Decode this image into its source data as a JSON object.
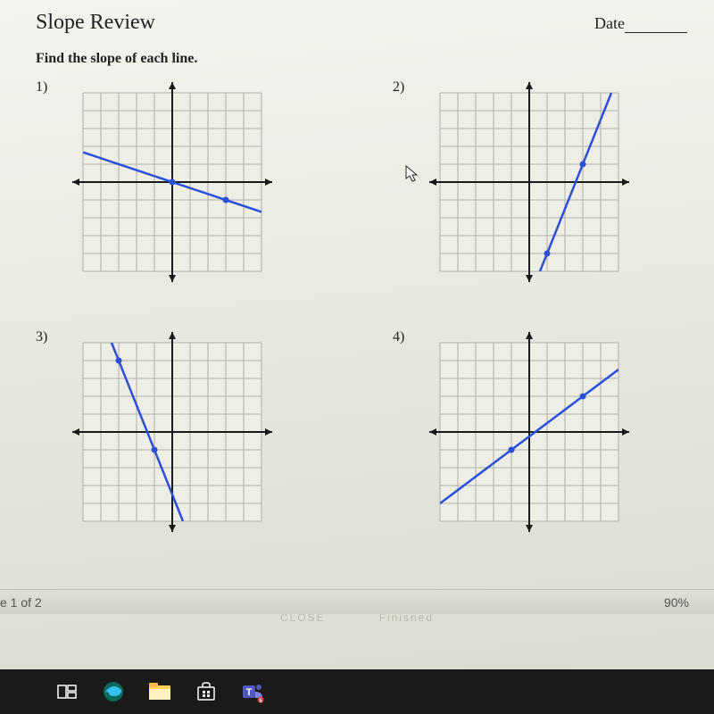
{
  "header": {
    "title": "Slope Review",
    "date_label": "Date"
  },
  "instruction": "Find the slope of each line.",
  "graph": {
    "grid_color": "#b0b0a8",
    "axis_color": "#1a1a1a",
    "line_color": "#2a4fd8",
    "point_color": "#2a4fd8",
    "bg_color": "#eeeee6",
    "size": 200,
    "cells": 10,
    "axis_width": 2,
    "grid_width": 1,
    "line_width": 2.5,
    "point_radius": 3.5,
    "arrow_size": 8
  },
  "problems": [
    {
      "num": "1)",
      "points": [
        [
          0,
          0
        ],
        [
          3,
          -1
        ]
      ],
      "line_extent": [
        [
          -5,
          1.67
        ],
        [
          5,
          -1.67
        ]
      ]
    },
    {
      "num": "2)",
      "points": [
        [
          1,
          -4
        ],
        [
          3,
          1
        ]
      ],
      "line_extent": [
        [
          0.6,
          -5
        ],
        [
          4.6,
          5
        ]
      ],
      "cursor": true
    },
    {
      "num": "3)",
      "points": [
        [
          -3,
          4
        ],
        [
          -1,
          -1
        ]
      ],
      "line_extent": [
        [
          -3.4,
          5
        ],
        [
          0.6,
          -5
        ]
      ]
    },
    {
      "num": "4)",
      "points": [
        [
          -1,
          -1
        ],
        [
          3,
          2
        ]
      ],
      "line_extent": [
        [
          -5,
          -4
        ],
        [
          5,
          3.5
        ]
      ]
    }
  ],
  "footer": {
    "page_info": "e 1 of 2",
    "close_hint": "CLOSE",
    "finished_hint": "Finisned",
    "zoom": "90%"
  },
  "taskbar": {
    "icons": [
      {
        "name": "task-view-icon",
        "color": "#ffffff"
      },
      {
        "name": "edge-icon",
        "color": "#35c1f1"
      },
      {
        "name": "explorer-icon",
        "color": "#ffd256"
      },
      {
        "name": "store-icon",
        "color": "#ffffff"
      },
      {
        "name": "teams-icon",
        "color": "#5158bb"
      }
    ]
  }
}
